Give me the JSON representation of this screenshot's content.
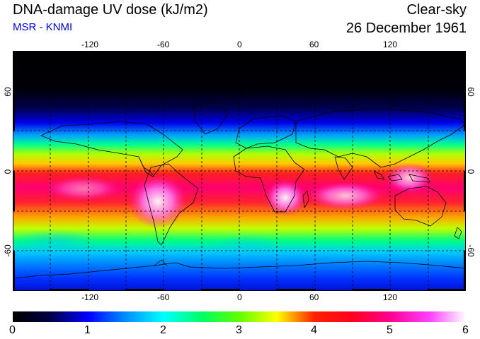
{
  "header": {
    "title": "DNA-damage UV dose (kJ/m2)",
    "subtitle": "MSR - KNMI",
    "condition": "Clear-sky",
    "date": "26 December 1961"
  },
  "colors": {
    "subtitle": "#0000ee",
    "frame": "#000000",
    "grid": "#000000"
  },
  "axes": {
    "longitude_ticks": [
      "-120",
      "-60",
      "0",
      "60",
      "120"
    ],
    "latitude_ticks": [
      "60",
      "0",
      "-60"
    ]
  },
  "colorbar": {
    "labels": [
      "0",
      "1",
      "2",
      "3",
      "4",
      "5",
      "6"
    ],
    "min": 0,
    "max": 6
  },
  "map": {
    "projection": "equirectangular",
    "lon_range": [
      -180,
      180
    ],
    "lat_range": [
      -90,
      90
    ],
    "gridlines": "dashed every 30 degrees"
  }
}
